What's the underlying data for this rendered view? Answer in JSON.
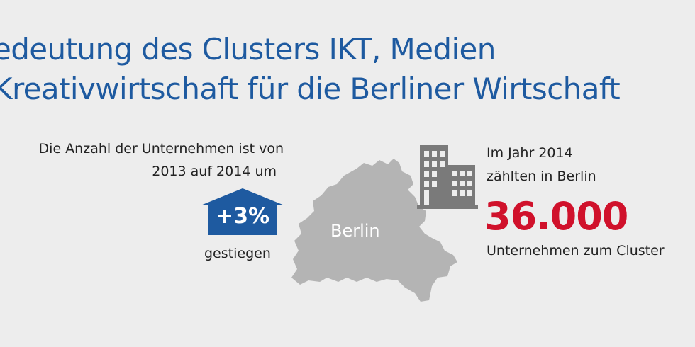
{
  "title": {
    "line1": "edeutung des Clusters IKT, Medien",
    "line2": "Kreativwirtschaft für die Berliner Wirtschaft"
  },
  "left": {
    "line1": "Die Anzahl der Unternehmen ist von",
    "line2": "2013 auf 2014 um",
    "change": "+3%",
    "line3": "gestiegen"
  },
  "map": {
    "label": "Berlin"
  },
  "right": {
    "line1": "Im Jahr 2014",
    "line2": "zählten in Berlin",
    "count": "36.000",
    "line3": "Unternehmen zum Cluster"
  },
  "colors": {
    "background": "#ededed",
    "title": "#1e5aa0",
    "accent_blue": "#1e5aa0",
    "accent_red": "#d0112b",
    "map_gray": "#b4b4b4",
    "icon_gray": "#7a7a7a",
    "text": "#222222"
  },
  "icons": {
    "arrow": "house-arrow-up-icon",
    "map": "berlin-map-icon",
    "building": "office-building-icon"
  }
}
